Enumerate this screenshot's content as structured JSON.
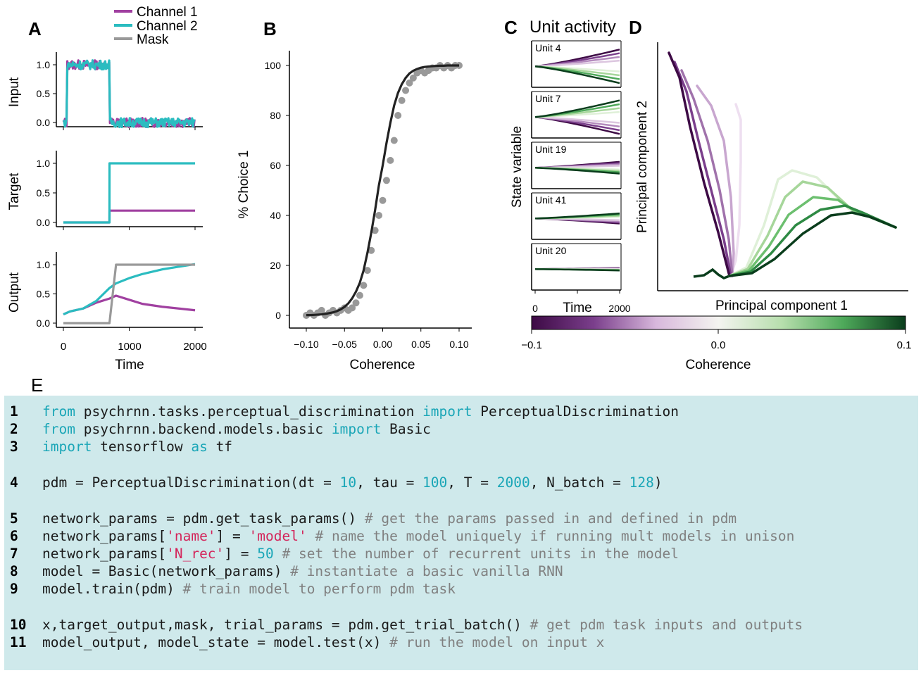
{
  "panel_labels": {
    "a": "A",
    "b": "B",
    "c": "C",
    "d": "D",
    "e": "E"
  },
  "panel_a": {
    "legend": [
      "Channel 1",
      "Channel 2",
      "Mask"
    ],
    "ylabels": [
      "Input",
      "Target",
      "Output"
    ],
    "yticks": [
      "0.0",
      "0.5",
      "1.0"
    ],
    "xticks": [
      "0",
      "1000",
      "2000"
    ],
    "xlabel": "Time"
  },
  "panel_b": {
    "ylabel": "% Choice 1",
    "xlabel": "Coherence",
    "yticks": [
      "0",
      "20",
      "40",
      "60",
      "80",
      "100"
    ],
    "xticks": [
      "−0.10",
      "−0.05",
      "0.00",
      "0.05",
      "0.10"
    ]
  },
  "panel_c": {
    "title": "Unit activity",
    "ylabel": "State variable",
    "units": [
      "Unit 4",
      "Unit 7",
      "Unit 19",
      "Unit 41",
      "Unit 20"
    ],
    "xticks": [
      "0",
      "2000"
    ],
    "xlabel": "Time"
  },
  "panel_d": {
    "xlabel": "Principal component 1",
    "ylabel": "Principal component 2"
  },
  "colorbar": {
    "ticks": [
      "−0.1",
      "0.0",
      "0.1"
    ],
    "label": "Coherence",
    "colors": [
      "#3d0a45",
      "#7b3f8c",
      "#d8b8dc",
      "#f4f4f0",
      "#b8dfae",
      "#4ea95a",
      "#0a3d1c"
    ]
  },
  "series_colors": {
    "channel1": "#a040a0",
    "channel2": "#2bbcc0",
    "mask": "#999999",
    "fit": "#222222",
    "points": "#999999"
  },
  "chart_data": [
    {
      "type": "line",
      "panel": "A-input",
      "x": [
        0,
        50,
        700,
        750,
        2000
      ],
      "series": [
        {
          "name": "Channel 1",
          "values": [
            0.0,
            1.0,
            1.0,
            0.0,
            0.0
          ]
        },
        {
          "name": "Channel 2",
          "values": [
            0.0,
            1.05,
            1.05,
            0.0,
            0.0
          ]
        }
      ],
      "ylim": [
        0,
        1.1
      ],
      "xlabel": "Time",
      "ylabel": "Input"
    },
    {
      "type": "line",
      "panel": "A-target",
      "x": [
        0,
        700,
        701,
        2000
      ],
      "series": [
        {
          "name": "Channel 1",
          "values": [
            0.0,
            0.0,
            0.2,
            0.2
          ]
        },
        {
          "name": "Channel 2",
          "values": [
            0.0,
            0.0,
            1.0,
            1.0
          ]
        }
      ],
      "ylim": [
        0,
        1.1
      ],
      "xlabel": "Time",
      "ylabel": "Target"
    },
    {
      "type": "line",
      "panel": "A-output",
      "x": [
        0,
        100,
        300,
        500,
        700,
        800,
        1000,
        1200,
        1500,
        2000
      ],
      "series": [
        {
          "name": "Channel 1",
          "values": [
            0.15,
            0.2,
            0.25,
            0.35,
            0.42,
            0.47,
            0.4,
            0.33,
            0.28,
            0.22
          ]
        },
        {
          "name": "Channel 2",
          "values": [
            0.15,
            0.2,
            0.25,
            0.38,
            0.6,
            0.68,
            0.77,
            0.84,
            0.92,
            1.01
          ]
        },
        {
          "name": "Mask",
          "values": [
            0.0,
            0.0,
            0.0,
            0.0,
            0.0,
            1.0,
            1.0,
            1.0,
            1.0,
            1.0
          ]
        }
      ],
      "ylim": [
        0,
        1.1
      ],
      "xlabel": "Time",
      "ylabel": "Output"
    },
    {
      "type": "scatter",
      "panel": "B",
      "x": [
        -0.1,
        -0.095,
        -0.09,
        -0.085,
        -0.08,
        -0.075,
        -0.07,
        -0.065,
        -0.06,
        -0.055,
        -0.05,
        -0.045,
        -0.04,
        -0.035,
        -0.03,
        -0.025,
        -0.02,
        -0.015,
        -0.01,
        -0.005,
        0.0,
        0.005,
        0.01,
        0.015,
        0.02,
        0.025,
        0.03,
        0.035,
        0.04,
        0.045,
        0.05,
        0.055,
        0.06,
        0.065,
        0.07,
        0.075,
        0.08,
        0.085,
        0.09,
        0.095,
        0.1
      ],
      "values": [
        0,
        1,
        0,
        1,
        2,
        0,
        1,
        2,
        1,
        2,
        3,
        2,
        3,
        5,
        8,
        12,
        18,
        26,
        34,
        40,
        46,
        54,
        62,
        70,
        80,
        86,
        90,
        93,
        95,
        97,
        98,
        97,
        98,
        99,
        99,
        100,
        99,
        100,
        99,
        100,
        100
      ],
      "fit": {
        "name": "",
        "values": [
          0.1,
          0.1,
          0.2,
          0.3,
          0.4,
          0.6,
          0.9,
          1.2,
          1.7,
          2.4,
          3.4,
          4.8,
          6.8,
          9.5,
          13,
          18,
          25,
          33,
          42,
          52,
          60,
          69,
          77,
          84,
          89,
          92.5,
          95,
          96.8,
          97.9,
          98.6,
          99.1,
          99.4,
          99.6,
          99.7,
          99.8,
          99.9,
          99.9,
          100,
          100,
          100,
          100
        ]
      },
      "xlim": [
        -0.11,
        0.11
      ],
      "ylim": [
        -2,
        104
      ],
      "xlabel": "Coherence",
      "ylabel": "% Choice 1"
    }
  ],
  "code": [
    {
      "n": "1",
      "tokens": [
        [
          "kw",
          "from"
        ],
        [
          "t",
          " psychrnn.tasks.perceptual_discrimination "
        ],
        [
          "kw",
          "import"
        ],
        [
          "t",
          " PerceptualDiscrimination"
        ]
      ]
    },
    {
      "n": "2",
      "tokens": [
        [
          "kw",
          "from"
        ],
        [
          "t",
          " psychrnn.backend.models.basic "
        ],
        [
          "kw",
          "import"
        ],
        [
          "t",
          " Basic"
        ]
      ]
    },
    {
      "n": "3",
      "tokens": [
        [
          "kw",
          "import"
        ],
        [
          "t",
          " tensorflow "
        ],
        [
          "kw",
          "as"
        ],
        [
          "t",
          " tf"
        ]
      ]
    },
    {
      "n": "4",
      "tokens": [
        [
          "t",
          "pdm = PerceptualDiscrimination(dt = "
        ],
        [
          "num",
          "10"
        ],
        [
          "t",
          ", tau = "
        ],
        [
          "num",
          "100"
        ],
        [
          "t",
          ", T = "
        ],
        [
          "num",
          "2000"
        ],
        [
          "t",
          ", N_batch = "
        ],
        [
          "num",
          "128"
        ],
        [
          "t",
          ")"
        ]
      ]
    },
    {
      "n": "5",
      "tokens": [
        [
          "t",
          "network_params = pdm.get_task_params() "
        ],
        [
          "cm",
          "# get the params passed in and defined in pdm"
        ]
      ]
    },
    {
      "n": "6",
      "tokens": [
        [
          "t",
          "network_params["
        ],
        [
          "str",
          "'name'"
        ],
        [
          "t",
          "] = "
        ],
        [
          "str",
          "'model'"
        ],
        [
          "t",
          " "
        ],
        [
          "cm",
          "# name the model uniquely if running mult models in unison"
        ]
      ]
    },
    {
      "n": "7",
      "tokens": [
        [
          "t",
          "network_params["
        ],
        [
          "str",
          "'N_rec'"
        ],
        [
          "t",
          "] = "
        ],
        [
          "num",
          "50"
        ],
        [
          "t",
          " "
        ],
        [
          "cm",
          "# set the number of recurrent units in the model"
        ]
      ]
    },
    {
      "n": "8",
      "tokens": [
        [
          "t",
          "model = Basic(network_params) "
        ],
        [
          "cm",
          "# instantiate a basic vanilla RNN"
        ]
      ]
    },
    {
      "n": "9",
      "tokens": [
        [
          "t",
          "model.train(pdm) "
        ],
        [
          "cm",
          "# train model to perform pdm task"
        ]
      ]
    },
    {
      "n": "10",
      "tokens": [
        [
          "t",
          "x,target_output,mask, trial_params = pdm.get_trial_batch() "
        ],
        [
          "cm",
          "# get pdm task inputs and outputs"
        ]
      ]
    },
    {
      "n": "11",
      "tokens": [
        [
          "t",
          "model_output, model_state = model.test(x) "
        ],
        [
          "cm",
          "# run the model on input x"
        ]
      ]
    }
  ]
}
